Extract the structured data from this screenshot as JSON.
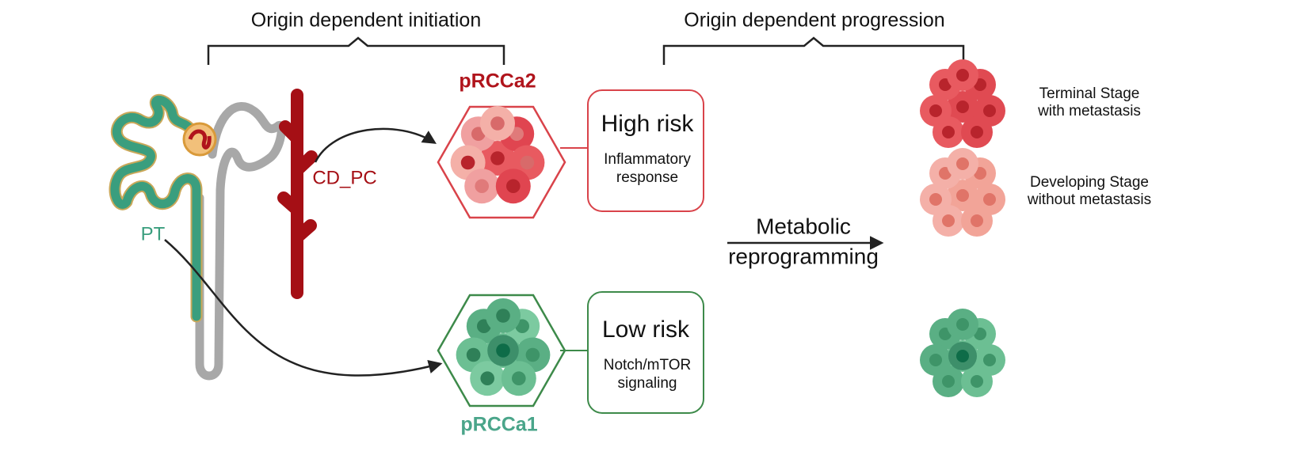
{
  "brackets": {
    "initiation": "Origin dependent initiation",
    "progression": "Origin dependent progression"
  },
  "nephron": {
    "pt_label": "PT",
    "cd_label": "CD_PC"
  },
  "subtypes": [
    {
      "name": "pRCCa2",
      "risk": "High risk",
      "description": [
        "Inflammatory",
        "response"
      ]
    },
    {
      "name": "pRCCa1",
      "risk": "Low risk",
      "description": [
        "Notch/mTOR",
        "signaling"
      ]
    }
  ],
  "transition": [
    "Metabolic",
    "reprogramming"
  ],
  "stages": [
    {
      "label": [
        "Terminal Stage",
        "with metastasis"
      ]
    },
    {
      "label": [
        "Developing Stage",
        "without metastasis"
      ]
    }
  ]
}
